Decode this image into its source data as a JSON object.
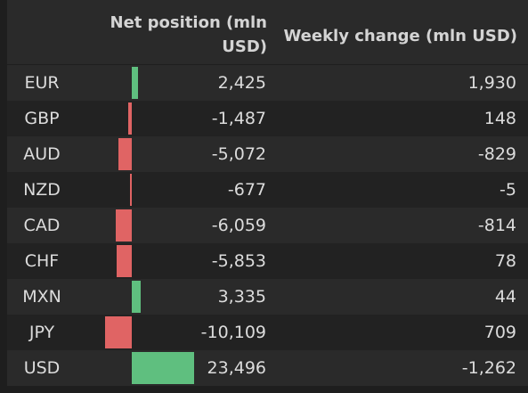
{
  "table": {
    "header": [
      "",
      "Net position (mln USD)",
      "Weekly change (mln USD)"
    ],
    "rows": [
      {
        "currency": "EUR",
        "net": {
          "value": 2425,
          "label": "2,425"
        },
        "weekly": "1,930"
      },
      {
        "currency": "GBP",
        "net": {
          "value": -1487,
          "label": "-1,487"
        },
        "weekly": "148"
      },
      {
        "currency": "AUD",
        "net": {
          "value": -5072,
          "label": "-5,072"
        },
        "weekly": "-829"
      },
      {
        "currency": "NZD",
        "net": {
          "value": -677,
          "label": "-677"
        },
        "weekly": "-5"
      },
      {
        "currency": "CAD",
        "net": {
          "value": -6059,
          "label": "-6,059"
        },
        "weekly": "-814"
      },
      {
        "currency": "CHF",
        "net": {
          "value": -5853,
          "label": "-5,853"
        },
        "weekly": "78"
      },
      {
        "currency": "MXN",
        "net": {
          "value": 3335,
          "label": "3,335"
        },
        "weekly": "44"
      },
      {
        "currency": "JPY",
        "net": {
          "value": -10109,
          "label": "-10,109"
        },
        "weekly": "709"
      },
      {
        "currency": "USD",
        "net": {
          "value": 23496,
          "label": "23,496"
        },
        "weekly": "-1,262"
      }
    ],
    "positive_color": "#5fbf7f",
    "negative_color": "#e06464"
  }
}
